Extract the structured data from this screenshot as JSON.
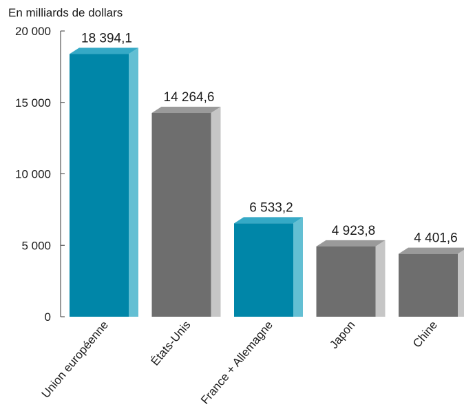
{
  "chart_data": {
    "type": "bar",
    "ylabel": "En milliards de dollars",
    "ylim": [
      0,
      20000
    ],
    "yticks": [
      0,
      5000,
      10000,
      15000,
      20000
    ],
    "ytick_labels": [
      "0",
      "5 000",
      "10 000",
      "15 000",
      "20 000"
    ],
    "categories": [
      "Union européenne",
      "États-Unis",
      "France + Allemagne",
      "Japon",
      "Chine"
    ],
    "values": [
      18394.1,
      14264.6,
      6533.2,
      4923.8,
      4401.6
    ],
    "value_labels": [
      "18 394,1",
      "14 264,6",
      "6 533,2",
      "4 923,8",
      "4 401,6"
    ],
    "bar_style": "3d",
    "highlight": [
      true,
      false,
      true,
      false,
      false
    ],
    "colors": {
      "highlight_front": "#0086a8",
      "highlight_top": "#35a9c6",
      "highlight_side": "#63bfd3",
      "normal_front": "#6e6e6e",
      "normal_top": "#9a9a9a",
      "normal_side": "#c6c6c6"
    },
    "grid": false
  }
}
